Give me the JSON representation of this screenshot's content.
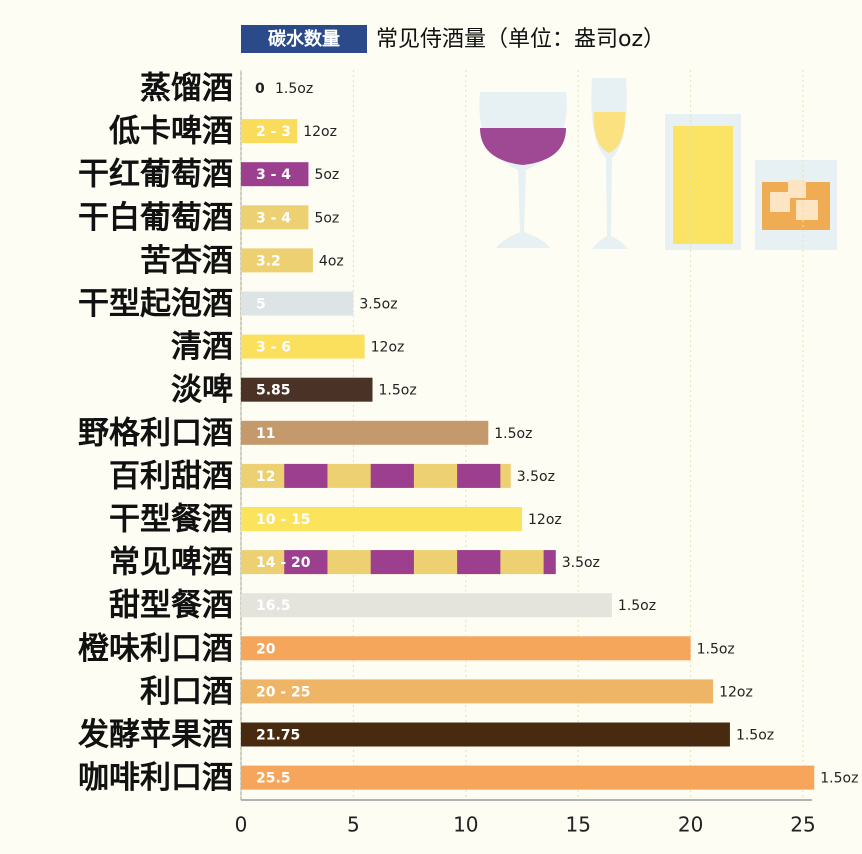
{
  "chart_data": {
    "type": "bar",
    "orientation": "horizontal",
    "legend_label": "碳水数量",
    "title": "常见侍酒量（单位：盎司oz）",
    "categories": [
      "蒸馏酒",
      "低卡啤酒",
      "干红葡萄酒",
      "干白葡萄酒",
      "苦杏酒",
      "干型起泡酒",
      "清酒",
      "淡啤",
      "野格利口酒",
      "百利甜酒",
      "干型餐酒",
      "常见啤酒",
      "甜型餐酒",
      "橙味利口酒",
      "利口酒",
      "发酵苹果酒",
      "咖啡利口酒"
    ],
    "values": [
      0,
      2.5,
      3,
      3,
      3.2,
      5,
      5.5,
      5.85,
      11,
      12,
      12.5,
      14,
      16.5,
      20,
      21,
      21.75,
      25.5
    ],
    "value_labels": [
      "0",
      "2 - 3",
      "3 - 4",
      "3 - 4",
      "3.2",
      "5",
      "3 - 6",
      "5.85",
      "11",
      "12",
      "10 - 15",
      "14 - 20",
      "16.5",
      "20",
      "20 - 25",
      "21.75",
      "25.5"
    ],
    "servings": [
      "1.5oz",
      "12oz",
      "5oz",
      "5oz",
      "4oz",
      "3.5oz",
      "12oz",
      "1.5oz",
      "1.5oz",
      "3.5oz",
      "12oz",
      "3.5oz",
      "1.5oz",
      "1.5oz",
      "12oz",
      "1.5oz",
      "1.5oz"
    ],
    "colors": [
      "#f9dc5c",
      "#f9dc5c",
      "#9b3f8e",
      "#edd071",
      "#edd071",
      "#dde4e6",
      "#fbe05e",
      "#4a3326",
      "#c49a6c",
      [
        "#edd071",
        "#9b3f8e"
      ],
      "#fbe35c",
      [
        "#edd071",
        "#9b3f8e"
      ],
      "#e4e4dc",
      "#f6a65a",
      "#efb566",
      "#472a10",
      "#f6a55a"
    ],
    "xlim": [
      0,
      25
    ],
    "xticks": [
      0,
      5,
      10,
      15,
      20,
      25
    ],
    "grid": true
  }
}
